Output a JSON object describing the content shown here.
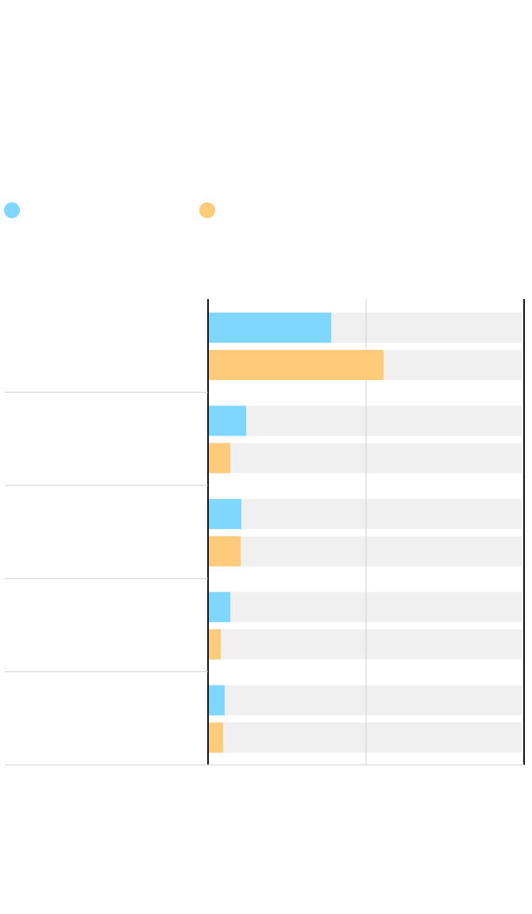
{
  "chart_data": {
    "type": "hbar",
    "categories": [
      null,
      null,
      null,
      null,
      null
    ],
    "series": [
      {
        "color": "#7fd6ff",
        "values": [
          38.7,
          11.8,
          10.3,
          6.8,
          5.0
        ]
      },
      {
        "color": "#fdcb7a",
        "values": [
          55.3,
          6.8,
          10.1,
          3.8,
          4.5
        ]
      }
    ],
    "xlim": [
      0,
      100
    ],
    "xticks": [
      0,
      50,
      100
    ],
    "grid": true
  }
}
